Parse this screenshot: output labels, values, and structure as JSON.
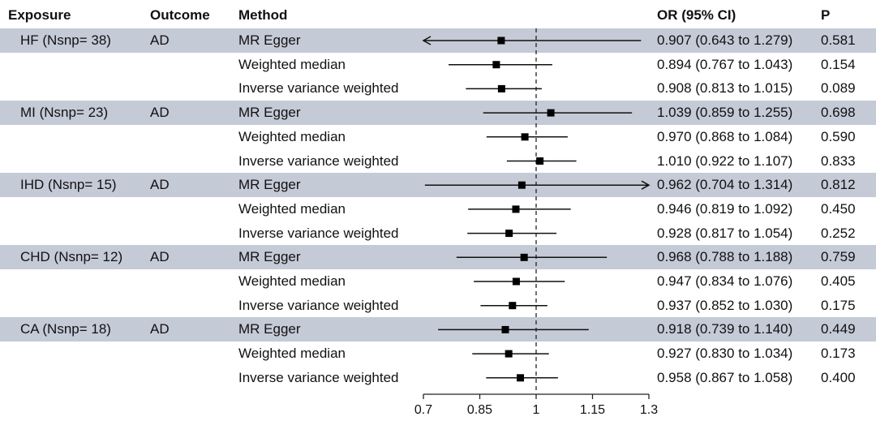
{
  "headers": {
    "exposure": "Exposure",
    "outcome": "Outcome",
    "method": "Method",
    "or": "OR (95% CI)",
    "p": "P"
  },
  "rows": [
    {
      "exposure": "HF (Nsnp= 38)",
      "outcome": "AD",
      "method": "MR Egger",
      "or_text": "0.907 (0.643 to 1.279)",
      "p": "0.581"
    },
    {
      "exposure": "",
      "outcome": "",
      "method": "Weighted median",
      "or_text": "0.894 (0.767 to 1.043)",
      "p": "0.154"
    },
    {
      "exposure": "",
      "outcome": "",
      "method": "Inverse variance weighted",
      "or_text": "0.908 (0.813 to 1.015)",
      "p": "0.089"
    },
    {
      "exposure": "MI (Nsnp= 23)",
      "outcome": "AD",
      "method": "MR Egger",
      "or_text": "1.039 (0.859 to 1.255)",
      "p": "0.698"
    },
    {
      "exposure": "",
      "outcome": "",
      "method": "Weighted median",
      "or_text": "0.970 (0.868 to 1.084)",
      "p": "0.590"
    },
    {
      "exposure": "",
      "outcome": "",
      "method": "Inverse variance weighted",
      "or_text": "1.010 (0.922 to 1.107)",
      "p": "0.833"
    },
    {
      "exposure": "IHD (Nsnp= 15)",
      "outcome": "AD",
      "method": "MR Egger",
      "or_text": "0.962 (0.704 to 1.314)",
      "p": "0.812"
    },
    {
      "exposure": "",
      "outcome": "",
      "method": "Weighted median",
      "or_text": "0.946 (0.819 to 1.092)",
      "p": "0.450"
    },
    {
      "exposure": "",
      "outcome": "",
      "method": "Inverse variance weighted",
      "or_text": "0.928 (0.817 to 1.054)",
      "p": "0.252"
    },
    {
      "exposure": "CHD (Nsnp= 12)",
      "outcome": "AD",
      "method": "MR Egger",
      "or_text": "0.968 (0.788 to 1.188)",
      "p": "0.759"
    },
    {
      "exposure": "",
      "outcome": "",
      "method": "Weighted median",
      "or_text": "0.947 (0.834 to 1.076)",
      "p": "0.405"
    },
    {
      "exposure": "",
      "outcome": "",
      "method": "Inverse variance weighted",
      "or_text": "0.937 (0.852 to 1.030)",
      "p": "0.175"
    },
    {
      "exposure": "CA (Nsnp= 18)",
      "outcome": "AD",
      "method": "MR Egger",
      "or_text": "0.918 (0.739 to 1.140)",
      "p": "0.449"
    },
    {
      "exposure": "",
      "outcome": "",
      "method": "Weighted median",
      "or_text": "0.927 (0.830 to 1.034)",
      "p": "0.173"
    },
    {
      "exposure": "",
      "outcome": "",
      "method": "Inverse variance weighted",
      "or_text": "0.958 (0.867 to 1.058)",
      "p": "0.400"
    }
  ],
  "chart_data": {
    "type": "forest",
    "reference_line": 1,
    "xlim": [
      0.7,
      1.3
    ],
    "ticks": [
      0.7,
      0.85,
      1,
      1.15,
      1.3
    ],
    "tick_labels": [
      "0.7",
      "0.85",
      "1",
      "1.15",
      "1.3"
    ],
    "band_color": "#c5cad7",
    "marker_color": "#000000",
    "points": [
      {
        "or": 0.907,
        "lo": 0.643,
        "hi": 1.279
      },
      {
        "or": 0.894,
        "lo": 0.767,
        "hi": 1.043
      },
      {
        "or": 0.908,
        "lo": 0.813,
        "hi": 1.015
      },
      {
        "or": 1.039,
        "lo": 0.859,
        "hi": 1.255
      },
      {
        "or": 0.97,
        "lo": 0.868,
        "hi": 1.084
      },
      {
        "or": 1.01,
        "lo": 0.922,
        "hi": 1.107
      },
      {
        "or": 0.962,
        "lo": 0.704,
        "hi": 1.314
      },
      {
        "or": 0.946,
        "lo": 0.819,
        "hi": 1.092
      },
      {
        "or": 0.928,
        "lo": 0.817,
        "hi": 1.054
      },
      {
        "or": 0.968,
        "lo": 0.788,
        "hi": 1.188
      },
      {
        "or": 0.947,
        "lo": 0.834,
        "hi": 1.076
      },
      {
        "or": 0.937,
        "lo": 0.852,
        "hi": 1.03
      },
      {
        "or": 0.918,
        "lo": 0.739,
        "hi": 1.14
      },
      {
        "or": 0.927,
        "lo": 0.83,
        "hi": 1.034
      },
      {
        "or": 0.958,
        "lo": 0.867,
        "hi": 1.058
      }
    ]
  }
}
